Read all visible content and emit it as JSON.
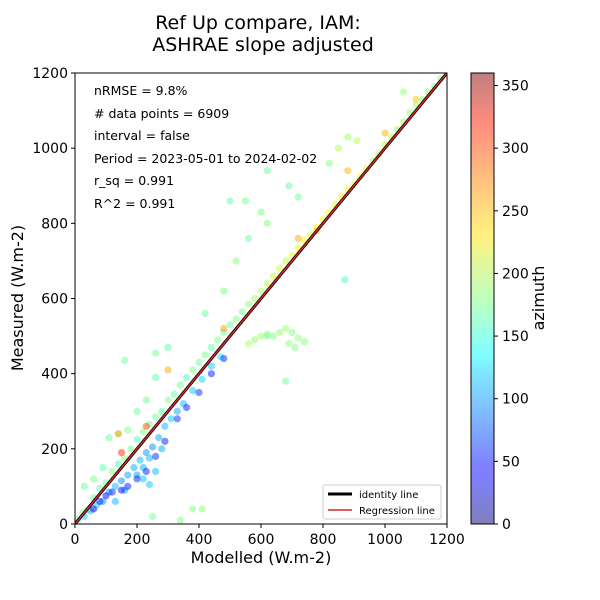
{
  "chart_data": {
    "type": "scatter",
    "title_lines": [
      "Ref Up compare, IAM:",
      "ASHRAE slope adjusted"
    ],
    "xlabel": "Modelled (W.m-2)",
    "ylabel": "Measured (W.m-2)",
    "xlim": [
      0,
      1200
    ],
    "ylim": [
      0,
      1200
    ],
    "xticks": [
      0,
      200,
      400,
      600,
      800,
      1000,
      1200
    ],
    "yticks": [
      0,
      200,
      400,
      600,
      800,
      1000,
      1200
    ],
    "grid": false,
    "annotations": [
      "nRMSE = 9.8%",
      "# data points = 6909",
      "interval = false",
      "Period = 2023-05-01 to 2024-02-02",
      "r_sq = 0.991",
      "R^2 = 0.991"
    ],
    "legend": {
      "placement": "lower-right",
      "entries": [
        {
          "label": "identity line",
          "color": "#000000"
        },
        {
          "label": "Regression line",
          "color": "#d62728"
        }
      ]
    },
    "lines": [
      {
        "name": "identity line",
        "x": [
          0,
          1200
        ],
        "y": [
          0,
          1200
        ],
        "color": "#000000"
      },
      {
        "name": "Regression line",
        "x": [
          0,
          1200
        ],
        "y": [
          0,
          1200
        ],
        "color": "#d62728"
      }
    ],
    "colorbar": {
      "label": "azimuth",
      "range": [
        0,
        360
      ],
      "ticks": [
        0,
        50,
        100,
        150,
        200,
        250,
        300,
        350
      ],
      "colormap": "jet"
    },
    "series": [
      {
        "color_variable": "azimuth",
        "points": [
          {
            "x": 10,
            "y": 12,
            "c": 160
          },
          {
            "x": 25,
            "y": 30,
            "c": 170
          },
          {
            "x": 40,
            "y": 38,
            "c": 180
          },
          {
            "x": 60,
            "y": 70,
            "c": 175
          },
          {
            "x": 80,
            "y": 95,
            "c": 165
          },
          {
            "x": 100,
            "y": 110,
            "c": 170
          },
          {
            "x": 120,
            "y": 140,
            "c": 180
          },
          {
            "x": 140,
            "y": 160,
            "c": 160
          },
          {
            "x": 160,
            "y": 175,
            "c": 185
          },
          {
            "x": 180,
            "y": 200,
            "c": 175
          },
          {
            "x": 200,
            "y": 225,
            "c": 165
          },
          {
            "x": 220,
            "y": 245,
            "c": 180
          },
          {
            "x": 240,
            "y": 265,
            "c": 170
          },
          {
            "x": 260,
            "y": 285,
            "c": 175
          },
          {
            "x": 280,
            "y": 300,
            "c": 165
          },
          {
            "x": 300,
            "y": 330,
            "c": 180
          },
          {
            "x": 320,
            "y": 345,
            "c": 170
          },
          {
            "x": 340,
            "y": 370,
            "c": 175
          },
          {
            "x": 360,
            "y": 390,
            "c": 160
          },
          {
            "x": 380,
            "y": 410,
            "c": 180
          },
          {
            "x": 400,
            "y": 430,
            "c": 170
          },
          {
            "x": 420,
            "y": 450,
            "c": 175
          },
          {
            "x": 440,
            "y": 470,
            "c": 165
          },
          {
            "x": 460,
            "y": 490,
            "c": 180
          },
          {
            "x": 480,
            "y": 510,
            "c": 175
          },
          {
            "x": 500,
            "y": 530,
            "c": 170
          },
          {
            "x": 520,
            "y": 545,
            "c": 180
          },
          {
            "x": 540,
            "y": 565,
            "c": 175
          },
          {
            "x": 560,
            "y": 585,
            "c": 185
          },
          {
            "x": 580,
            "y": 600,
            "c": 190
          },
          {
            "x": 600,
            "y": 620,
            "c": 195
          },
          {
            "x": 620,
            "y": 640,
            "c": 200
          },
          {
            "x": 640,
            "y": 660,
            "c": 205
          },
          {
            "x": 660,
            "y": 680,
            "c": 210
          },
          {
            "x": 680,
            "y": 700,
            "c": 200
          },
          {
            "x": 700,
            "y": 715,
            "c": 215
          },
          {
            "x": 720,
            "y": 735,
            "c": 220
          },
          {
            "x": 740,
            "y": 755,
            "c": 225
          },
          {
            "x": 760,
            "y": 770,
            "c": 210
          },
          {
            "x": 780,
            "y": 790,
            "c": 230
          },
          {
            "x": 800,
            "y": 810,
            "c": 220
          },
          {
            "x": 820,
            "y": 830,
            "c": 225
          },
          {
            "x": 840,
            "y": 850,
            "c": 215
          },
          {
            "x": 860,
            "y": 870,
            "c": 230
          },
          {
            "x": 880,
            "y": 890,
            "c": 220
          },
          {
            "x": 900,
            "y": 905,
            "c": 210
          },
          {
            "x": 920,
            "y": 925,
            "c": 225
          },
          {
            "x": 940,
            "y": 945,
            "c": 215
          },
          {
            "x": 960,
            "y": 965,
            "c": 200
          },
          {
            "x": 980,
            "y": 985,
            "c": 205
          },
          {
            "x": 1000,
            "y": 1010,
            "c": 195
          },
          {
            "x": 1020,
            "y": 1030,
            "c": 200
          },
          {
            "x": 1040,
            "y": 1050,
            "c": 190
          },
          {
            "x": 1060,
            "y": 1070,
            "c": 195
          },
          {
            "x": 1080,
            "y": 1095,
            "c": 185
          },
          {
            "x": 1100,
            "y": 1115,
            "c": 190
          },
          {
            "x": 1120,
            "y": 1130,
            "c": 180
          },
          {
            "x": 1140,
            "y": 1150,
            "c": 185
          },
          {
            "x": 1160,
            "y": 1165,
            "c": 175
          },
          {
            "x": 1180,
            "y": 1185,
            "c": 180
          },
          {
            "x": 30,
            "y": 20,
            "c": 120
          },
          {
            "x": 50,
            "y": 35,
            "c": 110
          },
          {
            "x": 70,
            "y": 50,
            "c": 115
          },
          {
            "x": 90,
            "y": 60,
            "c": 100
          },
          {
            "x": 110,
            "y": 85,
            "c": 105
          },
          {
            "x": 130,
            "y": 100,
            "c": 110
          },
          {
            "x": 150,
            "y": 115,
            "c": 95
          },
          {
            "x": 170,
            "y": 130,
            "c": 100
          },
          {
            "x": 190,
            "y": 150,
            "c": 105
          },
          {
            "x": 210,
            "y": 170,
            "c": 110
          },
          {
            "x": 230,
            "y": 190,
            "c": 100
          },
          {
            "x": 250,
            "y": 205,
            "c": 95
          },
          {
            "x": 270,
            "y": 230,
            "c": 105
          },
          {
            "x": 290,
            "y": 260,
            "c": 110
          },
          {
            "x": 310,
            "y": 280,
            "c": 115
          },
          {
            "x": 330,
            "y": 300,
            "c": 105
          },
          {
            "x": 350,
            "y": 320,
            "c": 110
          },
          {
            "x": 380,
            "y": 355,
            "c": 115
          },
          {
            "x": 410,
            "y": 385,
            "c": 120
          },
          {
            "x": 440,
            "y": 420,
            "c": 115
          },
          {
            "x": 470,
            "y": 445,
            "c": 125
          },
          {
            "x": 200,
            "y": 130,
            "c": 100
          },
          {
            "x": 220,
            "y": 150,
            "c": 105
          },
          {
            "x": 240,
            "y": 175,
            "c": 110
          },
          {
            "x": 160,
            "y": 90,
            "c": 100
          },
          {
            "x": 130,
            "y": 60,
            "c": 110
          },
          {
            "x": 220,
            "y": 120,
            "c": 115
          },
          {
            "x": 260,
            "y": 140,
            "c": 110
          },
          {
            "x": 240,
            "y": 105,
            "c": 115
          },
          {
            "x": 280,
            "y": 200,
            "c": 105
          },
          {
            "x": 560,
            "y": 480,
            "c": 195
          },
          {
            "x": 580,
            "y": 490,
            "c": 185
          },
          {
            "x": 600,
            "y": 500,
            "c": 190
          },
          {
            "x": 620,
            "y": 505,
            "c": 185
          },
          {
            "x": 640,
            "y": 500,
            "c": 180
          },
          {
            "x": 660,
            "y": 510,
            "c": 185
          },
          {
            "x": 680,
            "y": 520,
            "c": 190
          },
          {
            "x": 700,
            "y": 510,
            "c": 180
          },
          {
            "x": 720,
            "y": 495,
            "c": 185
          },
          {
            "x": 740,
            "y": 485,
            "c": 180
          },
          {
            "x": 690,
            "y": 480,
            "c": 185
          },
          {
            "x": 710,
            "y": 470,
            "c": 180
          },
          {
            "x": 30,
            "y": 100,
            "c": 170
          },
          {
            "x": 60,
            "y": 120,
            "c": 175
          },
          {
            "x": 90,
            "y": 150,
            "c": 165
          },
          {
            "x": 110,
            "y": 230,
            "c": 170
          },
          {
            "x": 140,
            "y": 240,
            "c": 175
          },
          {
            "x": 170,
            "y": 250,
            "c": 180
          },
          {
            "x": 200,
            "y": 300,
            "c": 170
          },
          {
            "x": 230,
            "y": 330,
            "c": 175
          },
          {
            "x": 260,
            "y": 390,
            "c": 165
          },
          {
            "x": 160,
            "y": 435,
            "c": 170
          },
          {
            "x": 260,
            "y": 455,
            "c": 175
          },
          {
            "x": 300,
            "y": 470,
            "c": 165
          },
          {
            "x": 420,
            "y": 560,
            "c": 170
          },
          {
            "x": 480,
            "y": 620,
            "c": 175
          },
          {
            "x": 520,
            "y": 700,
            "c": 180
          },
          {
            "x": 560,
            "y": 760,
            "c": 170
          },
          {
            "x": 600,
            "y": 830,
            "c": 175
          },
          {
            "x": 620,
            "y": 800,
            "c": 180
          },
          {
            "x": 690,
            "y": 900,
            "c": 170
          },
          {
            "x": 720,
            "y": 870,
            "c": 175
          },
          {
            "x": 820,
            "y": 960,
            "c": 180
          },
          {
            "x": 880,
            "y": 1030,
            "c": 190
          },
          {
            "x": 850,
            "y": 1000,
            "c": 195
          },
          {
            "x": 910,
            "y": 1020,
            "c": 200
          },
          {
            "x": 550,
            "y": 860,
            "c": 175
          },
          {
            "x": 620,
            "y": 940,
            "c": 170
          },
          {
            "x": 1060,
            "y": 1150,
            "c": 185
          },
          {
            "x": 140,
            "y": 240,
            "c": 260
          },
          {
            "x": 300,
            "y": 410,
            "c": 255
          },
          {
            "x": 480,
            "y": 520,
            "c": 260
          },
          {
            "x": 720,
            "y": 760,
            "c": 255
          },
          {
            "x": 880,
            "y": 940,
            "c": 250
          },
          {
            "x": 780,
            "y": 780,
            "c": 250
          },
          {
            "x": 1000,
            "y": 1040,
            "c": 250
          },
          {
            "x": 1100,
            "y": 1130,
            "c": 245
          },
          {
            "x": 380,
            "y": 40,
            "c": 180
          },
          {
            "x": 410,
            "y": 40,
            "c": 185
          },
          {
            "x": 250,
            "y": 20,
            "c": 175
          },
          {
            "x": 340,
            "y": 10,
            "c": 180
          },
          {
            "x": 680,
            "y": 380,
            "c": 175
          },
          {
            "x": 870,
            "y": 650,
            "c": 160
          },
          {
            "x": 500,
            "y": 860,
            "c": 165
          },
          {
            "x": 620,
            "y": 500,
            "c": 175
          },
          {
            "x": 60,
            "y": 40,
            "c": 45
          },
          {
            "x": 80,
            "y": 60,
            "c": 55
          },
          {
            "x": 100,
            "y": 75,
            "c": 45
          },
          {
            "x": 120,
            "y": 85,
            "c": 60
          },
          {
            "x": 150,
            "y": 90,
            "c": 50
          },
          {
            "x": 170,
            "y": 100,
            "c": 55
          },
          {
            "x": 200,
            "y": 120,
            "c": 60
          },
          {
            "x": 230,
            "y": 140,
            "c": 55
          },
          {
            "x": 260,
            "y": 180,
            "c": 60
          },
          {
            "x": 290,
            "y": 220,
            "c": 55
          },
          {
            "x": 330,
            "y": 280,
            "c": 60
          },
          {
            "x": 360,
            "y": 310,
            "c": 55
          },
          {
            "x": 400,
            "y": 350,
            "c": 60
          },
          {
            "x": 440,
            "y": 400,
            "c": 55
          },
          {
            "x": 480,
            "y": 440,
            "c": 60
          },
          {
            "x": 150,
            "y": 190,
            "c": 300
          },
          {
            "x": 230,
            "y": 260,
            "c": 290
          }
        ]
      }
    ]
  }
}
